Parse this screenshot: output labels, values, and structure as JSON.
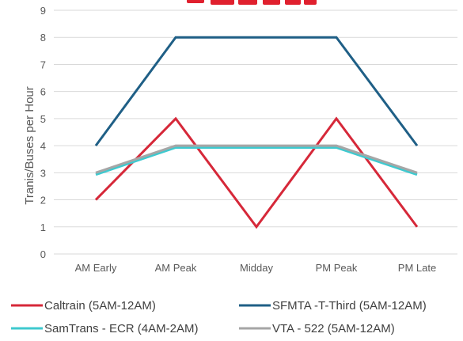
{
  "chart_data": {
    "type": "line",
    "title": "",
    "xlabel": "",
    "ylabel": "Tranis/Buses per Hour",
    "categories": [
      "AM Early",
      "AM Peak",
      "Midday",
      "PM Peak",
      "PM Late"
    ],
    "ylim": [
      0,
      9
    ],
    "yticks": [
      "0",
      "1",
      "2",
      "3",
      "4",
      "5",
      "6",
      "7",
      "8",
      "9"
    ],
    "grid": true,
    "legend_position": "bottom",
    "series": [
      {
        "name": "Caltrain (5AM-12AM)",
        "values": [
          2,
          5,
          1,
          5,
          1
        ],
        "color": "#d62839"
      },
      {
        "name": "SFMTA -T-Third (5AM-12AM)",
        "values": [
          4,
          8,
          8,
          8,
          4
        ],
        "color": "#1f5f86"
      },
      {
        "name": "SamTrans - ECR (4AM-2AM)",
        "values": [
          2.93,
          3.93,
          3.93,
          3.93,
          2.93
        ],
        "color": "#3ec9cf"
      },
      {
        "name": "VTA - 522 (5AM-12AM)",
        "values": [
          3,
          4,
          4,
          4,
          3
        ],
        "color": "#a6a6a6"
      }
    ]
  }
}
